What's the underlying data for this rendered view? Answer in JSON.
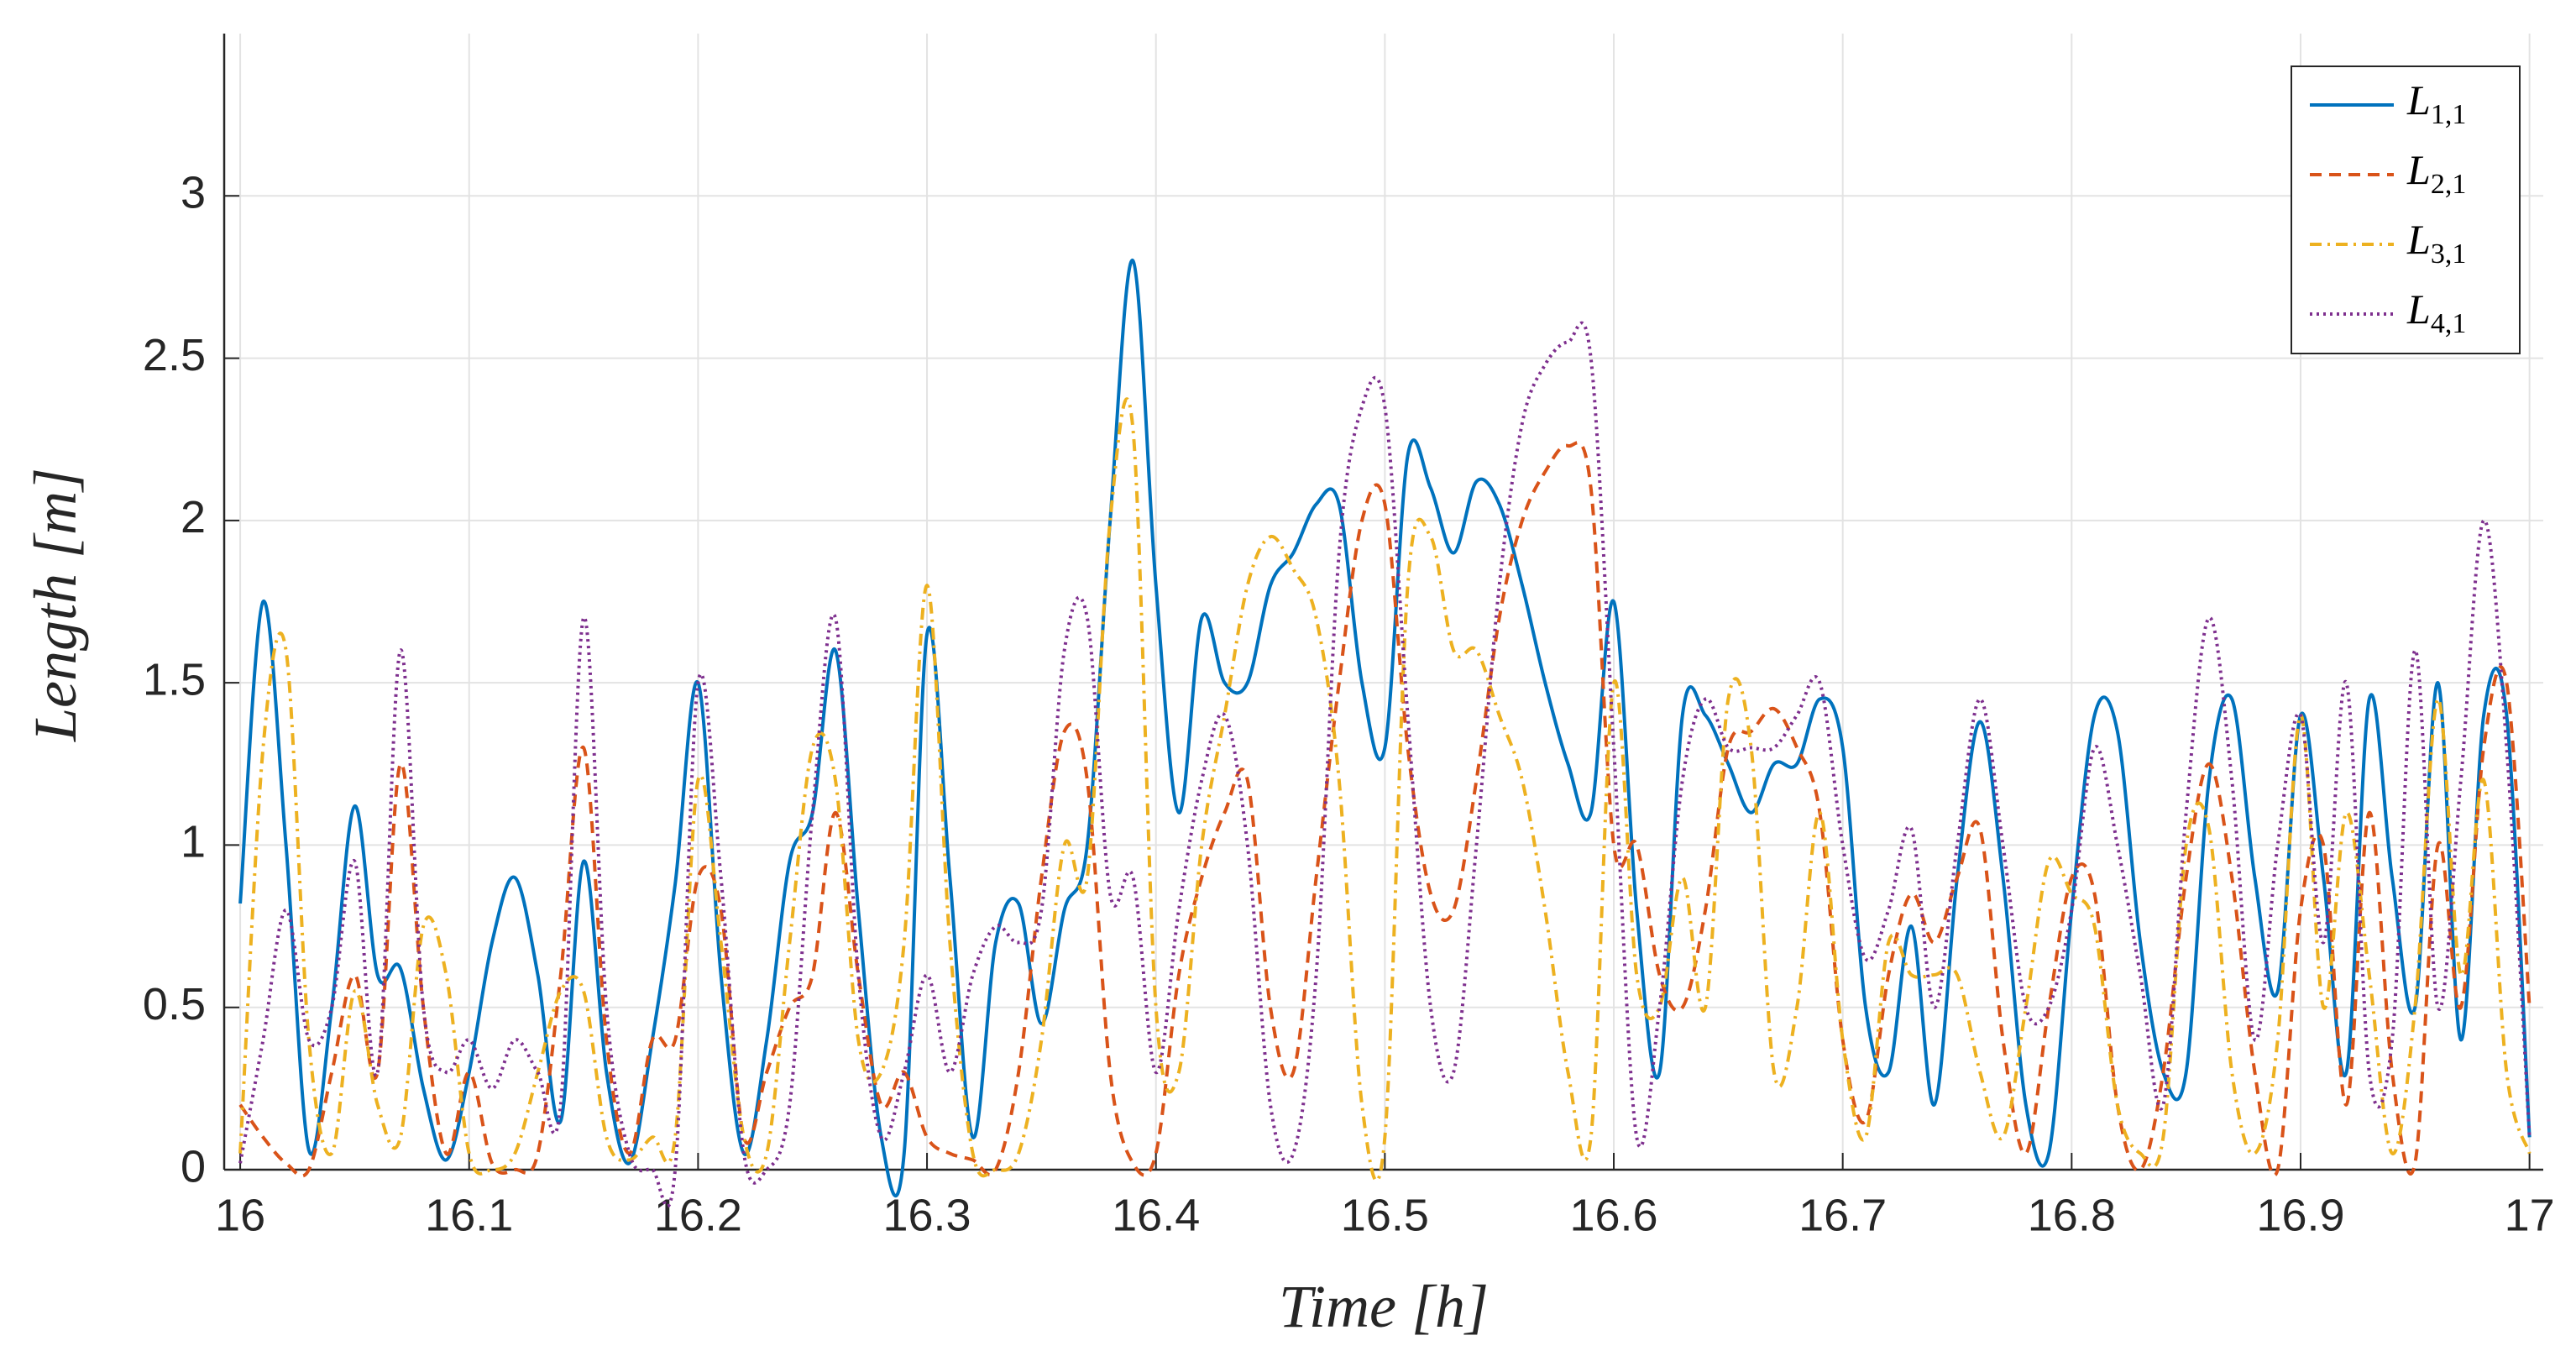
{
  "chart_data": {
    "type": "line",
    "xlabel": "Time [h]",
    "ylabel": "Length [m]",
    "x": [
      16.0,
      16.01,
      16.02,
      16.03,
      16.04,
      16.05,
      16.06,
      16.07,
      16.08,
      16.09,
      16.1,
      16.11,
      16.12,
      16.13,
      16.14,
      16.15,
      16.16,
      16.17,
      16.18,
      16.19,
      16.2,
      16.21,
      16.22,
      16.23,
      16.24,
      16.25,
      16.26,
      16.27,
      16.28,
      16.29,
      16.3,
      16.31,
      16.32,
      16.33,
      16.34,
      16.35,
      16.36,
      16.37,
      16.38,
      16.39,
      16.4,
      16.41,
      16.42,
      16.43,
      16.44,
      16.45,
      16.46,
      16.47,
      16.48,
      16.49,
      16.5,
      16.51,
      16.52,
      16.53,
      16.54,
      16.55,
      16.56,
      16.57,
      16.58,
      16.59,
      16.6,
      16.61,
      16.62,
      16.63,
      16.64,
      16.65,
      16.66,
      16.67,
      16.68,
      16.69,
      16.7,
      16.71,
      16.72,
      16.73,
      16.74,
      16.75,
      16.76,
      16.77,
      16.78,
      16.79,
      16.8,
      16.81,
      16.82,
      16.83,
      16.84,
      16.85,
      16.86,
      16.87,
      16.88,
      16.89,
      16.9,
      16.91,
      16.92,
      16.93,
      16.94,
      16.95,
      16.96,
      16.97,
      16.98,
      16.99,
      17.0
    ],
    "series": [
      {
        "name": "L",
        "subscript": "1,1",
        "color": "#0072bd",
        "dash": "solid",
        "values": [
          0.82,
          1.75,
          1.0,
          0.06,
          0.5,
          1.12,
          0.6,
          0.62,
          0.25,
          0.03,
          0.3,
          0.7,
          0.9,
          0.6,
          0.15,
          0.95,
          0.3,
          0.02,
          0.4,
          0.88,
          1.5,
          0.6,
          0.05,
          0.4,
          0.95,
          1.1,
          1.6,
          0.8,
          0.1,
          0.05,
          1.65,
          0.9,
          0.1,
          0.7,
          0.82,
          0.45,
          0.8,
          1.0,
          2.0,
          2.8,
          1.8,
          1.1,
          1.7,
          1.5,
          1.5,
          1.8,
          1.9,
          2.05,
          2.05,
          1.5,
          1.3,
          2.2,
          2.1,
          1.9,
          2.12,
          2.05,
          1.8,
          1.5,
          1.25,
          1.1,
          1.75,
          0.8,
          0.3,
          1.4,
          1.4,
          1.25,
          1.1,
          1.25,
          1.25,
          1.45,
          1.3,
          0.5,
          0.3,
          0.75,
          0.2,
          0.9,
          1.38,
          0.9,
          0.2,
          0.05,
          0.8,
          1.4,
          1.35,
          0.7,
          0.3,
          0.3,
          1.2,
          1.45,
          0.9,
          0.55,
          1.4,
          0.9,
          0.3,
          1.45,
          0.9,
          0.5,
          1.5,
          0.4,
          1.4,
          1.4,
          0.1
        ]
      },
      {
        "name": "L",
        "subscript": "2,1",
        "color": "#d95319",
        "dash": "dashed",
        "values": [
          0.2,
          0.1,
          0.02,
          0.0,
          0.3,
          0.6,
          0.3,
          1.25,
          0.5,
          0.05,
          0.3,
          0.02,
          0.0,
          0.05,
          0.6,
          1.3,
          0.4,
          0.05,
          0.4,
          0.4,
          0.9,
          0.8,
          0.1,
          0.3,
          0.5,
          0.6,
          1.1,
          0.6,
          0.2,
          0.3,
          0.1,
          0.05,
          0.03,
          0.0,
          0.3,
          0.9,
          1.35,
          1.2,
          0.3,
          0.02,
          0.05,
          0.6,
          0.9,
          1.1,
          1.2,
          0.5,
          0.3,
          0.9,
          1.5,
          2.0,
          2.05,
          1.3,
          0.85,
          0.8,
          1.2,
          1.7,
          2.0,
          2.15,
          2.23,
          2.1,
          1.0,
          1.0,
          0.6,
          0.5,
          0.8,
          1.3,
          1.35,
          1.42,
          1.3,
          1.1,
          0.4,
          0.15,
          0.6,
          0.85,
          0.7,
          0.9,
          1.05,
          0.4,
          0.05,
          0.5,
          0.9,
          0.85,
          0.2,
          0.0,
          0.3,
          0.9,
          1.25,
          0.9,
          0.3,
          0.0,
          0.8,
          1.0,
          0.2,
          1.1,
          0.3,
          0.02,
          1.0,
          0.5,
          1.3,
          1.5,
          0.5
        ]
      },
      {
        "name": "L",
        "subscript": "3,1",
        "color": "#edb120",
        "dash": "dashdot",
        "values": [
          0.05,
          1.3,
          1.6,
          0.4,
          0.05,
          0.55,
          0.2,
          0.1,
          0.75,
          0.6,
          0.05,
          0.0,
          0.05,
          0.3,
          0.55,
          0.55,
          0.1,
          0.03,
          0.1,
          0.1,
          1.2,
          0.7,
          0.1,
          0.05,
          0.7,
          1.3,
          1.2,
          0.4,
          0.3,
          0.7,
          1.8,
          0.7,
          0.05,
          0.0,
          0.05,
          0.4,
          1.0,
          0.9,
          2.0,
          2.28,
          0.5,
          0.3,
          1.0,
          1.4,
          1.8,
          1.95,
          1.85,
          1.7,
          1.2,
          0.2,
          0.1,
          1.8,
          1.95,
          1.6,
          1.6,
          1.4,
          1.2,
          0.8,
          0.3,
          0.1,
          1.5,
          0.6,
          0.5,
          0.9,
          0.5,
          1.45,
          1.3,
          0.3,
          0.5,
          1.1,
          0.4,
          0.1,
          0.7,
          0.6,
          0.6,
          0.6,
          0.3,
          0.1,
          0.5,
          0.95,
          0.85,
          0.75,
          0.2,
          0.05,
          0.1,
          1.0,
          1.05,
          0.3,
          0.05,
          0.4,
          1.4,
          0.5,
          1.1,
          0.6,
          0.05,
          0.5,
          1.45,
          0.6,
          1.2,
          0.3,
          0.05
        ]
      },
      {
        "name": "L",
        "subscript": "4,1",
        "color": "#7e2f8e",
        "dash": "dotted",
        "values": [
          0.02,
          0.4,
          0.8,
          0.4,
          0.5,
          0.95,
          0.3,
          1.6,
          0.5,
          0.3,
          0.4,
          0.25,
          0.4,
          0.3,
          0.2,
          1.7,
          0.5,
          0.05,
          0.0,
          0.0,
          1.5,
          0.9,
          0.05,
          0.0,
          0.2,
          1.1,
          1.7,
          0.6,
          0.1,
          0.3,
          0.6,
          0.3,
          0.6,
          0.75,
          0.7,
          0.8,
          1.6,
          1.7,
          0.85,
          0.9,
          0.3,
          0.8,
          1.2,
          1.4,
          1.0,
          0.2,
          0.05,
          0.6,
          1.9,
          2.35,
          2.35,
          1.4,
          0.5,
          0.3,
          1.0,
          1.8,
          2.3,
          2.48,
          2.55,
          2.5,
          1.3,
          0.1,
          0.5,
          1.2,
          1.45,
          1.3,
          1.3,
          1.3,
          1.4,
          1.5,
          1.0,
          0.65,
          0.8,
          1.05,
          0.5,
          1.0,
          1.45,
          1.0,
          0.5,
          0.5,
          0.8,
          1.3,
          1.0,
          0.6,
          0.2,
          1.1,
          1.7,
          1.2,
          0.4,
          1.0,
          1.4,
          0.7,
          1.5,
          0.3,
          0.4,
          1.6,
          0.5,
          1.2,
          2.0,
          1.3,
          0.1
        ]
      }
    ],
    "xlim": [
      15.993,
      17.006
    ],
    "ylim": [
      0,
      3.5
    ],
    "xticks": [
      16,
      16.1,
      16.2,
      16.3,
      16.4,
      16.5,
      16.6,
      16.7,
      16.8,
      16.9,
      17
    ],
    "yticks": [
      0,
      0.5,
      1,
      1.5,
      2,
      2.5,
      3
    ],
    "grid": true,
    "legend": "upper right"
  }
}
